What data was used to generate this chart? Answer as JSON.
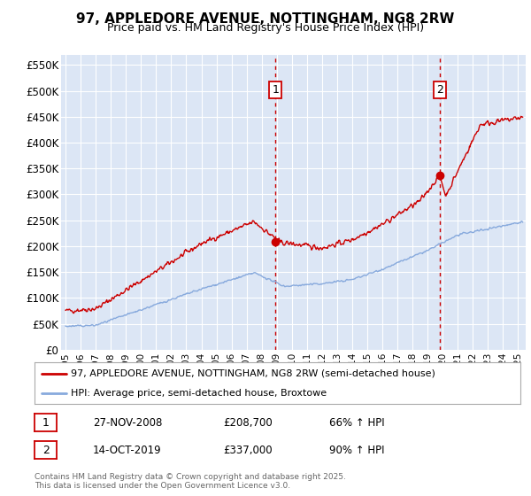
{
  "title": "97, APPLEDORE AVENUE, NOTTINGHAM, NG8 2RW",
  "subtitle": "Price paid vs. HM Land Registry's House Price Index (HPI)",
  "ylabel_ticks": [
    "£0",
    "£50K",
    "£100K",
    "£150K",
    "£200K",
    "£250K",
    "£300K",
    "£350K",
    "£400K",
    "£450K",
    "£500K",
    "£550K"
  ],
  "ytick_vals": [
    0,
    50000,
    100000,
    150000,
    200000,
    250000,
    300000,
    350000,
    400000,
    450000,
    500000,
    550000
  ],
  "ylim": [
    0,
    570000
  ],
  "xlim_start": 1994.7,
  "xlim_end": 2025.5,
  "background_color": "#ffffff",
  "plot_bg_color": "#dce6f5",
  "grid_color": "#ffffff",
  "red_line_color": "#cc0000",
  "blue_line_color": "#88aadd",
  "marker1_x": 2008.92,
  "marker1_y": 208700,
  "marker2_x": 2019.79,
  "marker2_y": 337000,
  "legend_red": "97, APPLEDORE AVENUE, NOTTINGHAM, NG8 2RW (semi-detached house)",
  "legend_blue": "HPI: Average price, semi-detached house, Broxtowe",
  "ann1_date": "27-NOV-2008",
  "ann1_price": "£208,700",
  "ann1_hpi": "66% ↑ HPI",
  "ann2_date": "14-OCT-2019",
  "ann2_price": "£337,000",
  "ann2_hpi": "90% ↑ HPI",
  "footer": "Contains HM Land Registry data © Crown copyright and database right 2025.\nThis data is licensed under the Open Government Licence v3.0."
}
